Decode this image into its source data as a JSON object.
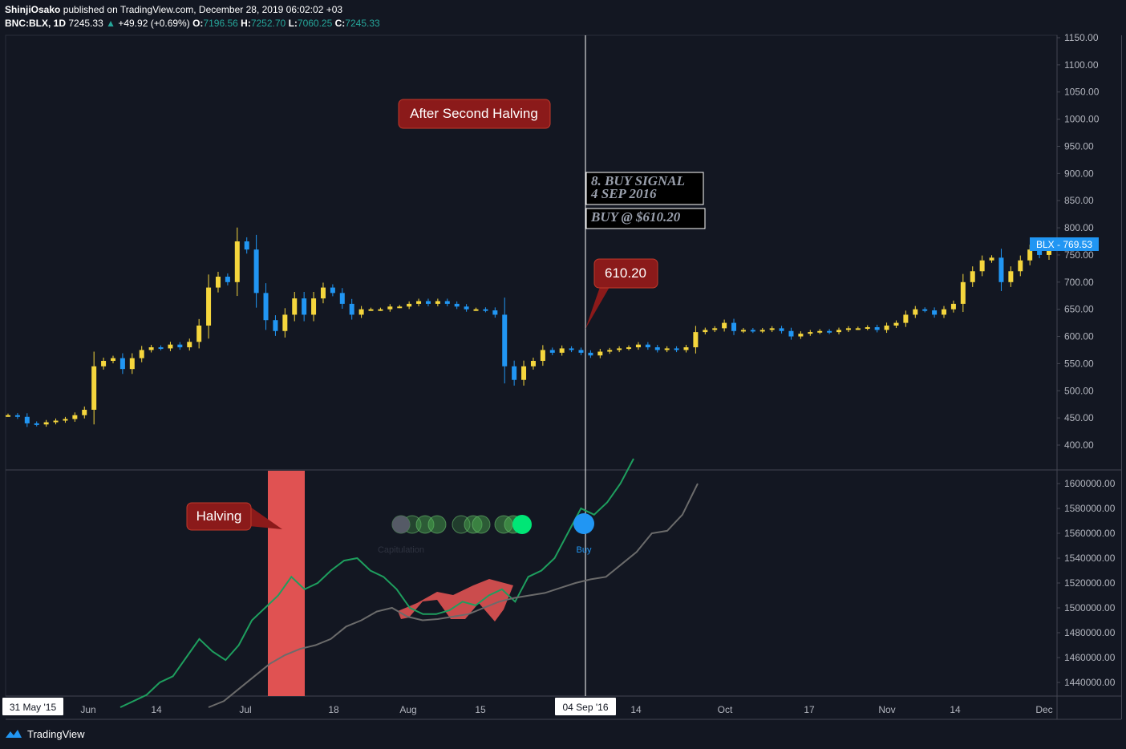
{
  "header": {
    "author": "ShinjiOsako",
    "published_text": "published on TradingView.com, December 28, 2019 06:02:02 +03",
    "symbol": "BNC:BLX, 1D",
    "last": "7245.33",
    "change": "+49.92 (+0.69%)",
    "o_label": "O:",
    "o_val": "7196.56",
    "h_label": "H:",
    "h_val": "7252.70",
    "l_label": "L:",
    "l_val": "7060.25",
    "c_label": "C:",
    "c_val": "7245.33"
  },
  "footer": {
    "brand": "TradingView"
  },
  "colors": {
    "background": "#131722",
    "candle_up": "#f5d63d",
    "candle_down": "#2196f3",
    "annotation": "#8b1a1a",
    "green_line": "#1e9e5e",
    "gray_line": "#6b6b6b",
    "halving_band": "#e05252",
    "buy_dot": "#2196f3"
  },
  "chart_data": [
    {
      "type": "candlestick",
      "symbol": "BLX",
      "last_price_label": "769.53",
      "price_tag": "BLX",
      "ylim": [
        400,
        1150
      ],
      "y_ticks": [
        "1150.00",
        "1100.00",
        "1050.00",
        "1000.00",
        "950.00",
        "900.00",
        "850.00",
        "800.00",
        "750.00",
        "700.00",
        "650.00",
        "600.00",
        "550.00",
        "500.00",
        "450.00",
        "400.00"
      ],
      "x_ticks": [
        "31 May '15",
        "Jun",
        "14",
        "Jul",
        "18",
        "Aug",
        "15",
        "04 Sep '16",
        "14",
        "Oct",
        "17",
        "Nov",
        "14",
        "Dec"
      ],
      "annotations": {
        "after_halving": "After Second Halving",
        "signal_line1": "8. BUY SIGNAL",
        "signal_line2": "4 SEP 2016",
        "buy_at": "BUY @ $610.20",
        "price_callout": "610.20"
      },
      "closes": [
        455,
        452,
        440,
        438,
        442,
        445,
        448,
        455,
        465,
        545,
        555,
        560,
        540,
        560,
        575,
        580,
        578,
        585,
        580,
        590,
        620,
        690,
        710,
        700,
        775,
        760,
        680,
        630,
        610,
        640,
        670,
        640,
        670,
        690,
        680,
        660,
        640,
        650,
        650,
        650,
        655,
        655,
        660,
        665,
        660,
        665,
        660,
        655,
        650,
        650,
        648,
        640,
        545,
        520,
        545,
        555,
        575,
        570,
        578,
        575,
        570,
        565,
        572,
        575,
        578,
        580,
        585,
        580,
        575,
        578,
        575,
        580,
        608,
        612,
        615,
        625,
        610,
        612,
        610,
        612,
        615,
        610,
        600,
        605,
        608,
        610,
        608,
        612,
        615,
        615,
        617,
        612,
        620,
        625,
        640,
        650,
        648,
        640,
        650,
        660,
        700,
        720,
        740,
        745,
        700,
        720,
        740,
        760,
        750,
        770
      ]
    },
    {
      "type": "line",
      "ylim": [
        1420000,
        1610000
      ],
      "y_ticks": [
        "1600000.00",
        "1580000.00",
        "1560000.00",
        "1540000.00",
        "1520000.00",
        "1500000.00",
        "1480000.00",
        "1460000.00",
        "1440000.00"
      ],
      "halving_label": "Halving",
      "signal_labels": {
        "capitulation": "Capitulation",
        "buy": "Buy"
      },
      "series": [
        {
          "values": [
            1420000,
            1425000,
            1430000,
            1440000,
            1445000,
            1460000,
            1475000,
            1465000,
            1458000,
            1470000,
            1490000,
            1500000,
            1510000,
            1525000,
            1515000,
            1520000,
            1530000,
            1538000,
            1540000,
            1530000,
            1525000,
            1515000,
            1500000,
            1495000,
            1495000,
            1498000,
            1505000,
            1502000,
            1510000,
            1515000,
            1505000,
            1525000,
            1530000,
            1540000,
            1560000,
            1580000,
            1575000,
            1585000,
            1600000,
            1620000
          ]
        },
        {
          "values": [
            1420000,
            1425000,
            1435000,
            1445000,
            1455000,
            1462000,
            1467000,
            1470000,
            1475000,
            1485000,
            1490000,
            1497000,
            1500000,
            1493000,
            1490000,
            1491000,
            1493000,
            1495000,
            1500000,
            1505000,
            1508000,
            1510000,
            1512000,
            1516000,
            1520000,
            1523000,
            1525000,
            1535000,
            1545000,
            1560000,
            1562000,
            1575000,
            1600000
          ]
        }
      ]
    }
  ]
}
